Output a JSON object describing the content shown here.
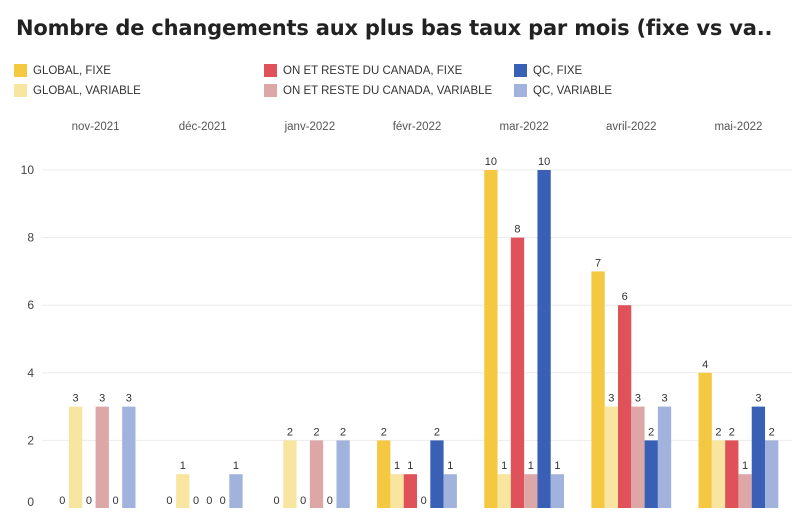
{
  "title": "Nombre de changements aux plus bas taux par mois (fixe vs va..",
  "chart_data": {
    "type": "bar",
    "categories": [
      "nov-2021",
      "déc-2021",
      "janv-2022",
      "févr-2022",
      "mar-2022",
      "avril-2022",
      "mai-2022"
    ],
    "ylim": [
      0,
      10
    ],
    "yticks": [
      0,
      2,
      4,
      6,
      8,
      10
    ],
    "grid": true,
    "legend_position": "top",
    "series": [
      {
        "name": "GLOBAL, FIXE",
        "color": "#F5C842",
        "values": [
          0,
          0,
          0,
          2,
          10,
          7,
          4
        ]
      },
      {
        "name": "GLOBAL, VARIABLE",
        "color": "#F7E5A0",
        "values": [
          3,
          1,
          2,
          1,
          1,
          3,
          2
        ]
      },
      {
        "name": "ON ET RESTE DU CANADA, FIXE",
        "color": "#E0525A",
        "values": [
          0,
          0,
          0,
          1,
          8,
          6,
          2
        ]
      },
      {
        "name": "ON ET RESTE DU CANADA, VARIABLE",
        "color": "#DDA7A8",
        "values": [
          3,
          0,
          2,
          0,
          1,
          3,
          1
        ]
      },
      {
        "name": "QC, FIXE",
        "color": "#3A60B5",
        "values": [
          0,
          0,
          0,
          2,
          10,
          2,
          3
        ]
      },
      {
        "name": "QC, VARIABLE",
        "color": "#A1B3DC",
        "values": [
          3,
          1,
          2,
          1,
          1,
          3,
          2
        ]
      }
    ]
  }
}
